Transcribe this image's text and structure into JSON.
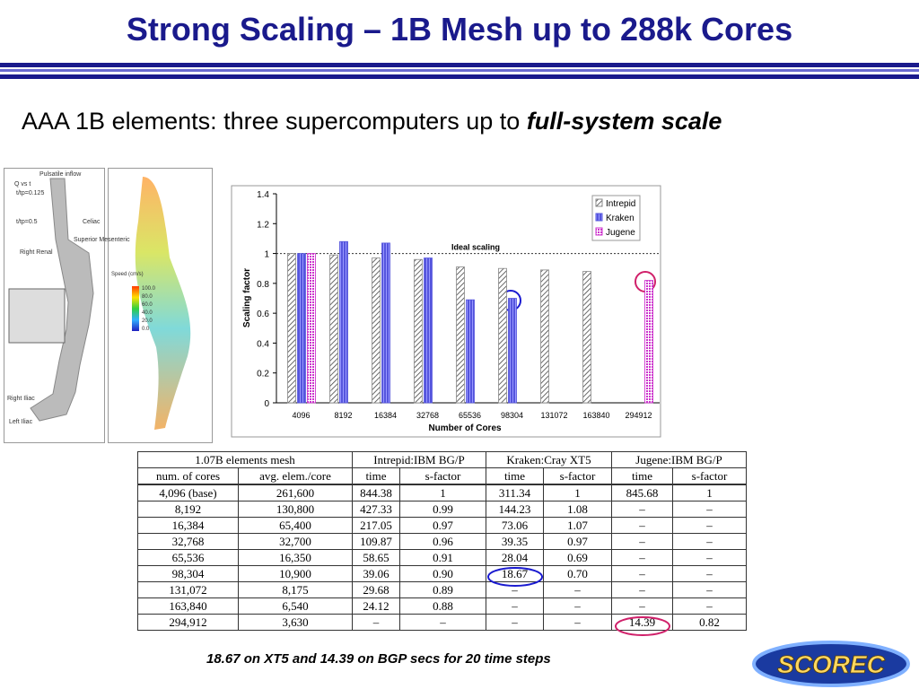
{
  "title": "Strong Scaling – 1B Mesh up to 288k Cores",
  "subtitle": {
    "text": "AAA 1B elements: three supercomputers up to ",
    "emphasis": "full-system scale"
  },
  "figure": {
    "labels": [
      "Pulsatile inflow",
      "Q vs t",
      "t/tp=0.125",
      "t/tp=0.5",
      "Celiac",
      "Superior Mesenteric",
      "Right Renal",
      "Right Iliac",
      "Left Iliac",
      "Speed (cm/s)",
      "100.0",
      "80.0",
      "60.0",
      "40.0",
      "20.0",
      "0.0"
    ]
  },
  "chart_data": {
    "type": "bar",
    "x_label": "Number of Cores",
    "y_label": "Scaling factor",
    "categories": [
      "4096",
      "8192",
      "16384",
      "32768",
      "65536",
      "98304",
      "131072",
      "163840",
      "294912"
    ],
    "series": [
      {
        "name": "Intrepid",
        "color": "#888888",
        "values": [
          1,
          0.99,
          0.97,
          0.96,
          0.91,
          0.9,
          0.89,
          0.88,
          null
        ]
      },
      {
        "name": "Kraken",
        "color": "#5555dd",
        "values": [
          1,
          1.08,
          1.07,
          0.97,
          0.69,
          0.7,
          null,
          null,
          null
        ]
      },
      {
        "name": "Jugene",
        "color": "#cc33cc",
        "values": [
          1,
          null,
          null,
          null,
          null,
          null,
          null,
          null,
          0.82
        ]
      }
    ],
    "ylim": [
      0,
      1.4
    ],
    "yticks": [
      0,
      0.2,
      0.4,
      0.6,
      0.8,
      1,
      1.2,
      1.4
    ],
    "reference_line": {
      "value": 1,
      "label": "Ideal scaling"
    },
    "legend": "top-right"
  },
  "table": {
    "header": [
      [
        "1.07B elements mesh",
        "Intrepid:IBM BG/P",
        "Kraken:Cray XT5",
        "Jugene:IBM BG/P"
      ],
      [
        "num. of cores",
        "avg. elem./core",
        "time",
        "s-factor",
        "time",
        "s-factor",
        "time",
        "s-factor"
      ]
    ],
    "rows": [
      [
        "4,096 (base)",
        "261,600",
        "844.38",
        "1",
        "311.34",
        "1",
        "845.68",
        "1"
      ],
      [
        "8,192",
        "130,800",
        "427.33",
        "0.99",
        "144.23",
        "1.08",
        "–",
        "–"
      ],
      [
        "16,384",
        "65,400",
        "217.05",
        "0.97",
        "73.06",
        "1.07",
        "–",
        "–"
      ],
      [
        "32,768",
        "32,700",
        "109.87",
        "0.96",
        "39.35",
        "0.97",
        "–",
        "–"
      ],
      [
        "65,536",
        "16,350",
        "58.65",
        "0.91",
        "28.04",
        "0.69",
        "–",
        "–"
      ],
      [
        "98,304",
        "10,900",
        "39.06",
        "0.90",
        "18.67",
        "0.70",
        "–",
        "–"
      ],
      [
        "131,072",
        "8,175",
        "29.68",
        "0.89",
        "–",
        "–",
        "–",
        "–"
      ],
      [
        "163,840",
        "6,540",
        "24.12",
        "0.88",
        "–",
        "–",
        "–",
        "–"
      ],
      [
        "294,912",
        "3,630",
        "–",
        "–",
        "–",
        "–",
        "14.39",
        "0.82"
      ]
    ]
  },
  "caption": "18.67 on XT5 and  14.39 on BGP secs  for 20 time steps",
  "logo": "SCOREC"
}
